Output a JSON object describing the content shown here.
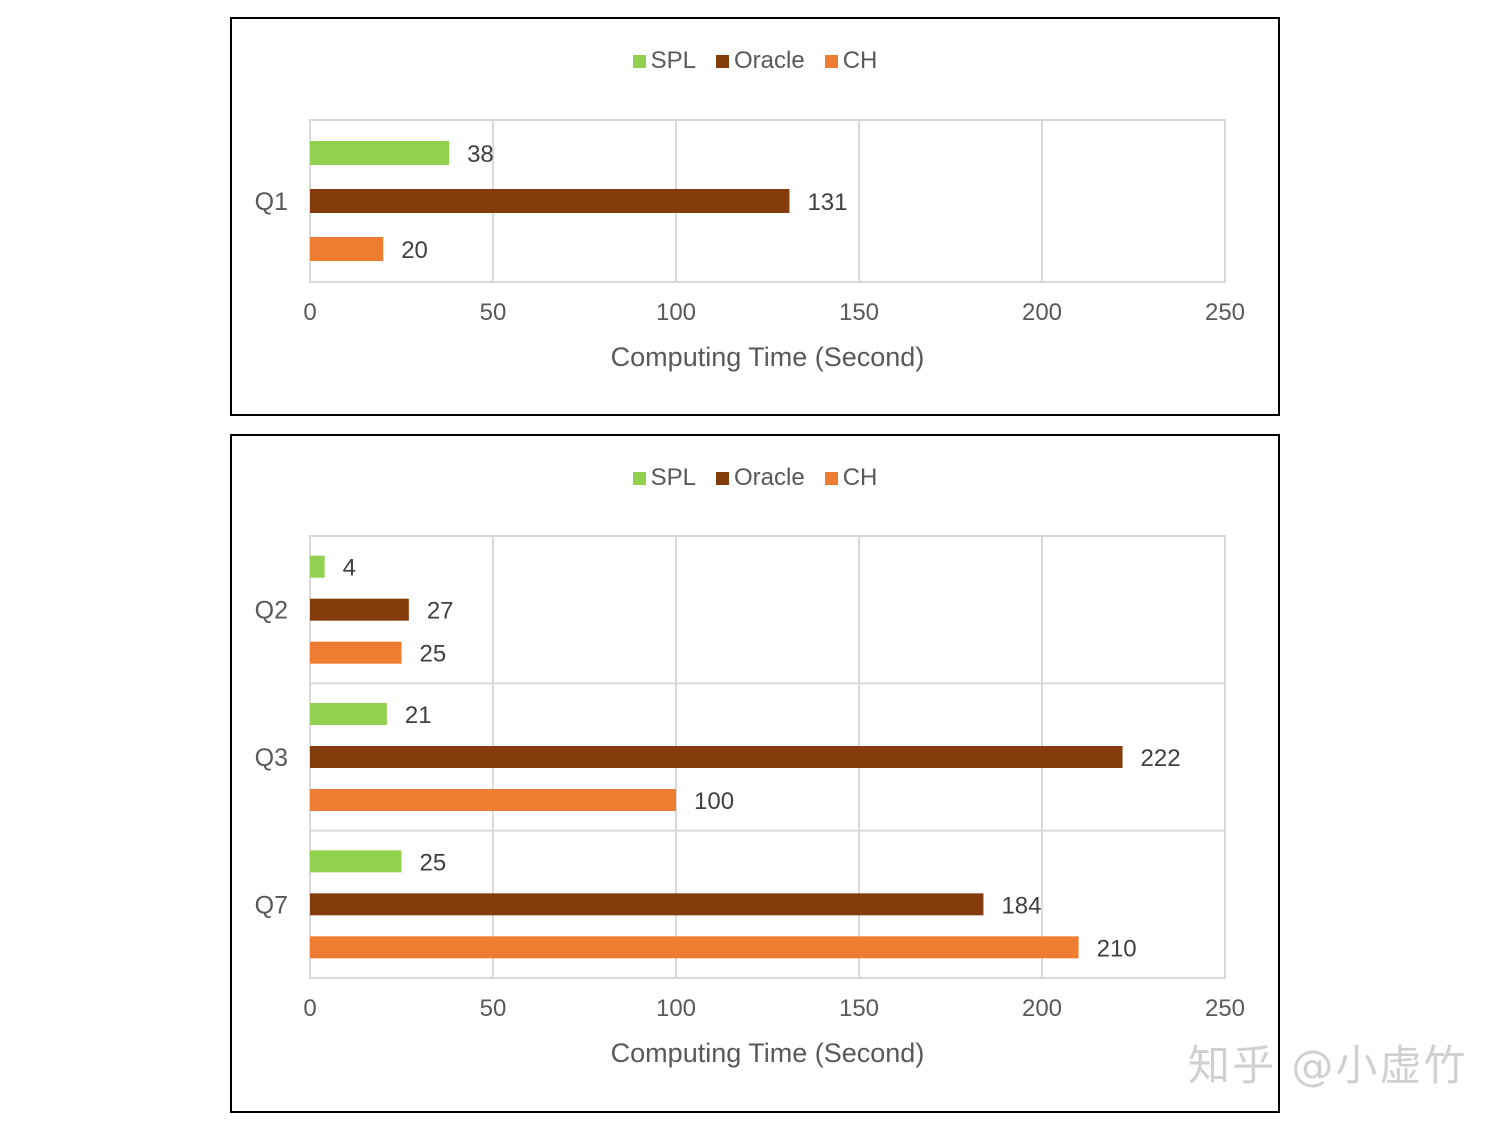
{
  "chart_data": [
    {
      "type": "bar",
      "orientation": "horizontal",
      "categories": [
        "Q1"
      ],
      "series": [
        {
          "name": "SPL",
          "values": [
            38
          ],
          "color": "#92d050"
        },
        {
          "name": "Oracle",
          "values": [
            131
          ],
          "color": "#843c0c"
        },
        {
          "name": "CH",
          "values": [
            20
          ],
          "color": "#ed7d31"
        }
      ],
      "xlabel": "Computing Time (Second)",
      "xlim": [
        0,
        250
      ],
      "xticks": [
        "0",
        "50",
        "100",
        "150",
        "200",
        "250"
      ],
      "grid": true,
      "legend": "top-center"
    },
    {
      "type": "bar",
      "orientation": "horizontal",
      "categories": [
        "Q2",
        "Q3",
        "Q7"
      ],
      "series": [
        {
          "name": "SPL",
          "values": [
            4,
            21,
            25
          ],
          "color": "#92d050"
        },
        {
          "name": "Oracle",
          "values": [
            27,
            222,
            184
          ],
          "color": "#843c0c"
        },
        {
          "name": "CH",
          "values": [
            25,
            100,
            210
          ],
          "color": "#ed7d31"
        }
      ],
      "xlabel": "Computing Time (Second)",
      "xlim": [
        0,
        250
      ],
      "xticks": [
        "0",
        "50",
        "100",
        "150",
        "200",
        "250"
      ],
      "grid": true,
      "legend": "top-center"
    }
  ],
  "watermark": "知乎 @小虚竹"
}
